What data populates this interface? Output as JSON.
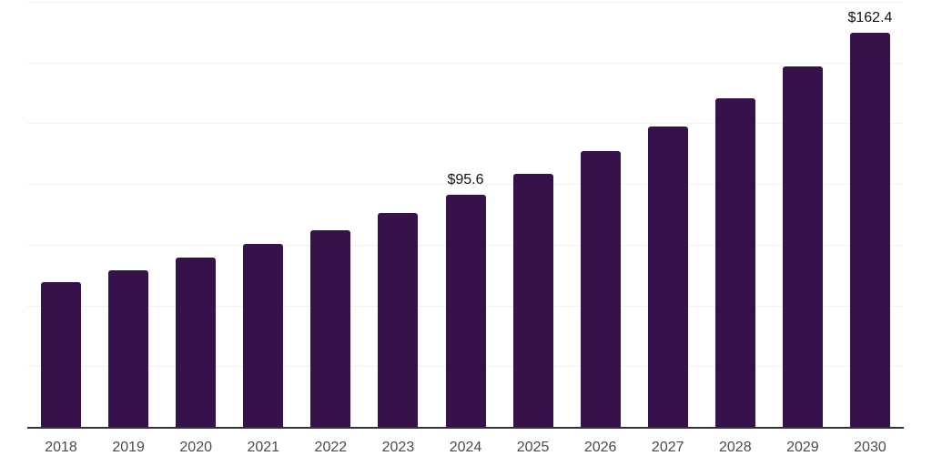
{
  "chart_data": {
    "type": "bar",
    "title": "",
    "xlabel": "",
    "ylabel": "",
    "categories": [
      "2018",
      "2019",
      "2020",
      "2021",
      "2022",
      "2023",
      "2024",
      "2025",
      "2026",
      "2027",
      "2028",
      "2029",
      "2030"
    ],
    "values": [
      59.6,
      64.4,
      69.8,
      75.3,
      81.0,
      88.0,
      95.6,
      104.2,
      113.6,
      123.7,
      135.2,
      148.4,
      162.4
    ],
    "data_labels": [
      {
        "category": "2024",
        "text": "$95.6"
      },
      {
        "category": "2030",
        "text": "$162.4"
      }
    ],
    "ylim": [
      0,
      175
    ],
    "gridline_step": 25,
    "grid": "horizontal-only",
    "y_tick_labels_shown": false,
    "legend": "none",
    "bar_color": "#36124a",
    "background_color": "#ffffff",
    "axis_line_color": "#333333",
    "gridline_color": "#f1f1f1",
    "tick_label_color": "#4a4a4a",
    "data_label_color": "#111111"
  }
}
